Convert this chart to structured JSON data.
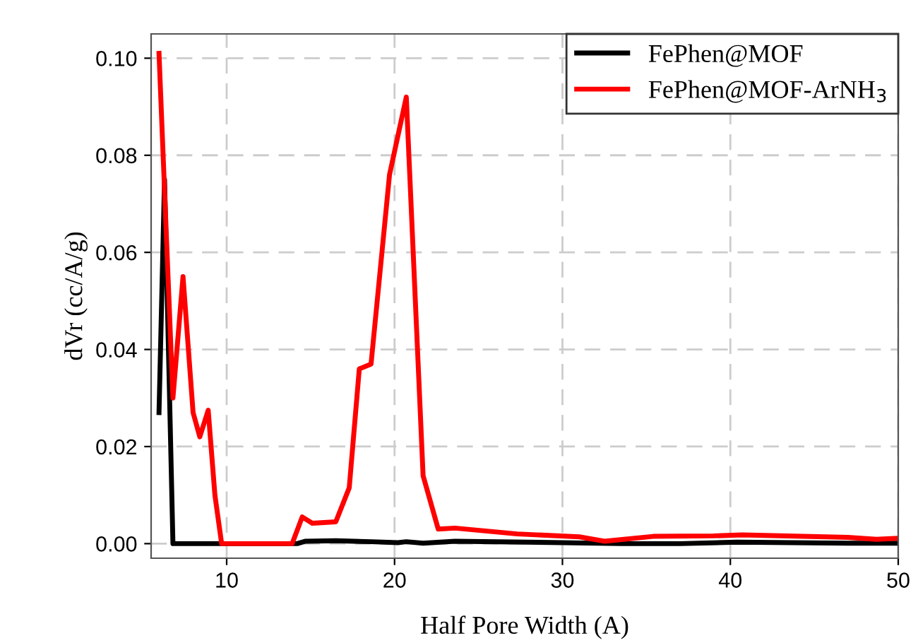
{
  "chart_data": {
    "type": "line",
    "xlabel": "Half Pore Width (A)",
    "ylabel": "dVr (cc/A/g)",
    "xlim": [
      5.5,
      50
    ],
    "xticks": [
      10,
      20,
      30,
      40,
      50
    ],
    "ylim": [
      -0.003,
      0.105
    ],
    "yticks": [
      {
        "value": 0,
        "label": "0.00"
      },
      {
        "value": 0.02,
        "label": "0.02"
      },
      {
        "value": 0.04,
        "label": "0.04"
      },
      {
        "value": 0.06,
        "label": "0.06"
      },
      {
        "value": 0.08,
        "label": "0.08"
      },
      {
        "value": 0.1,
        "label": "0.10"
      }
    ],
    "grid": true,
    "legend": "top right",
    "line_style": "solid",
    "marker": "none",
    "series": [
      {
        "name": "FePhen@MOF",
        "color": "#000000",
        "x": [
          5.97,
          6.3,
          6.8,
          14.2,
          14.7,
          16.5,
          18.6,
          20.2,
          20.7,
          21.7,
          23.6,
          30,
          33.5,
          37,
          40.4,
          47,
          50
        ],
        "values": [
          0.027,
          0.075,
          0.0,
          0.0,
          0.0005,
          0.0006,
          0.0004,
          0.0002,
          0.0004,
          0.0001,
          0.0005,
          0.0002,
          0.0,
          0.0,
          0.0003,
          0.0001,
          0.0001
        ]
      },
      {
        "name": "FePhen@MOF-ArNH$_{3}$",
        "color": "#ff0000",
        "x": [
          5.97,
          6.8,
          7.4,
          8.0,
          8.4,
          8.9,
          9.3,
          9.7,
          13.9,
          14.5,
          15.1,
          16.5,
          17.3,
          17.9,
          18.6,
          19.7,
          20.7,
          21.7,
          22.6,
          23.6,
          27.3,
          31,
          32.5,
          35.4,
          39,
          40.7,
          47,
          48.7,
          50
        ],
        "values": [
          0.101,
          0.03,
          0.055,
          0.027,
          0.022,
          0.0275,
          0.01,
          0.0,
          0.0,
          0.0055,
          0.0042,
          0.0045,
          0.0115,
          0.036,
          0.037,
          0.076,
          0.092,
          0.014,
          0.003,
          0.0032,
          0.002,
          0.0014,
          0.0005,
          0.0015,
          0.0016,
          0.0018,
          0.0013,
          0.0009,
          0.0011
        ]
      }
    ]
  }
}
